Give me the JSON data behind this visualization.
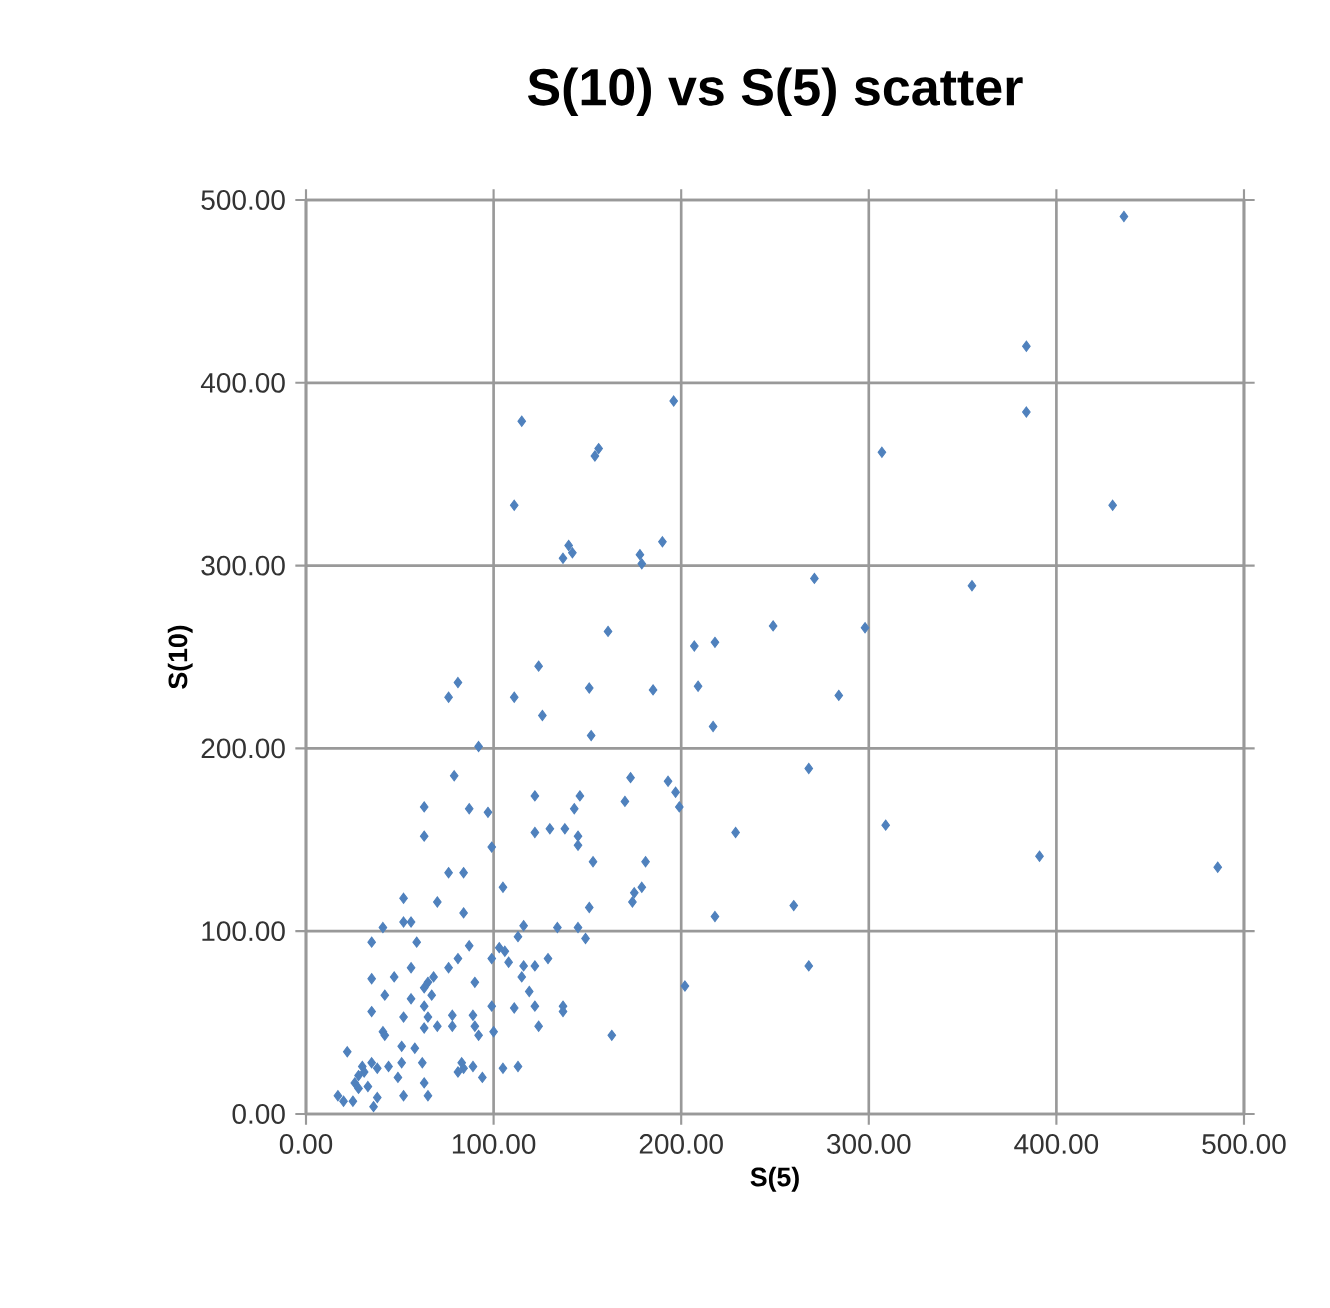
{
  "chart_data": {
    "type": "scatter",
    "title": "S(10) vs S(5) scatter",
    "xlabel": "S(5)",
    "ylabel": "S(10)",
    "x": [
      436,
      384,
      384,
      307,
      430,
      196,
      190,
      178,
      271,
      355,
      249,
      298,
      207,
      218,
      209,
      185,
      161,
      284,
      217,
      179,
      173,
      193,
      197,
      199,
      170,
      268,
      229,
      309,
      391,
      486,
      181,
      175,
      179,
      174,
      218,
      260,
      268,
      202,
      115,
      156,
      154,
      111,
      140,
      142,
      137,
      81,
      76,
      124,
      111,
      151,
      126,
      152,
      92,
      79,
      63,
      87,
      97,
      122,
      146,
      143,
      63,
      122,
      130,
      138,
      145,
      145,
      99,
      153,
      76,
      84,
      105,
      52,
      70,
      84,
      151,
      52,
      56,
      41,
      116,
      134,
      145,
      149,
      113,
      35,
      59,
      87,
      81,
      103,
      106,
      99,
      108,
      76,
      68,
      116,
      122,
      129,
      56,
      47,
      35,
      115,
      90,
      65,
      63,
      67,
      42,
      56,
      63,
      119,
      122,
      35,
      52,
      65,
      70,
      78,
      89,
      78,
      90,
      99,
      111,
      137,
      137,
      124,
      100,
      92,
      63,
      41,
      42,
      51,
      58,
      62,
      163,
      22,
      35,
      30,
      31,
      28,
      38,
      44,
      51,
      83,
      84,
      81,
      89,
      94,
      105,
      113,
      63,
      49,
      52,
      65,
      38,
      36,
      17,
      20,
      25,
      26,
      28,
      33
    ],
    "values": [
      491,
      420,
      384,
      362,
      333,
      390,
      313,
      306,
      293,
      289,
      267,
      266,
      256,
      258,
      234,
      232,
      264,
      229,
      212,
      301,
      184,
      182,
      176,
      168,
      171,
      189,
      154,
      158,
      141,
      135,
      138,
      121,
      124,
      116,
      108,
      114,
      81,
      70,
      379,
      364,
      360,
      333,
      311,
      307,
      304,
      236,
      228,
      245,
      228,
      233,
      218,
      207,
      201,
      185,
      168,
      167,
      165,
      174,
      174,
      167,
      152,
      154,
      156,
      156,
      152,
      147,
      146,
      138,
      132,
      132,
      124,
      118,
      116,
      110,
      113,
      105,
      105,
      102,
      103,
      102,
      102,
      96,
      97,
      94,
      94,
      92,
      85,
      91,
      89,
      85,
      83,
      80,
      75,
      81,
      81,
      85,
      80,
      75,
      74,
      75,
      72,
      72,
      69,
      65,
      65,
      63,
      59,
      67,
      59,
      56,
      53,
      53,
      48,
      54,
      54,
      48,
      48,
      59,
      58,
      59,
      56,
      48,
      45,
      43,
      47,
      45,
      43,
      37,
      36,
      28,
      43,
      34,
      28,
      26,
      23,
      21,
      25,
      26,
      28,
      28,
      25,
      23,
      26,
      20,
      25,
      26,
      17,
      20,
      10,
      10,
      9,
      4,
      10,
      7,
      7,
      17,
      14,
      15
    ],
    "color": "#4f81bd",
    "marker": "diamond",
    "grid": true,
    "xlim": [
      0,
      500
    ],
    "ylim": [
      0,
      500
    ],
    "xticks": [
      {
        "value": 0,
        "label": "0.00"
      },
      {
        "value": 100,
        "label": "100.00"
      },
      {
        "value": 200,
        "label": "200.00"
      },
      {
        "value": 300,
        "label": "300.00"
      },
      {
        "value": 400,
        "label": "400.00"
      },
      {
        "value": 500,
        "label": "500.00"
      }
    ],
    "yticks": [
      {
        "value": 0,
        "label": "0.00"
      },
      {
        "value": 100,
        "label": "100.00"
      },
      {
        "value": 200,
        "label": "200.00"
      },
      {
        "value": 300,
        "label": "300.00"
      },
      {
        "value": 400,
        "label": "400.00"
      },
      {
        "value": 500,
        "label": "500.00"
      }
    ]
  }
}
